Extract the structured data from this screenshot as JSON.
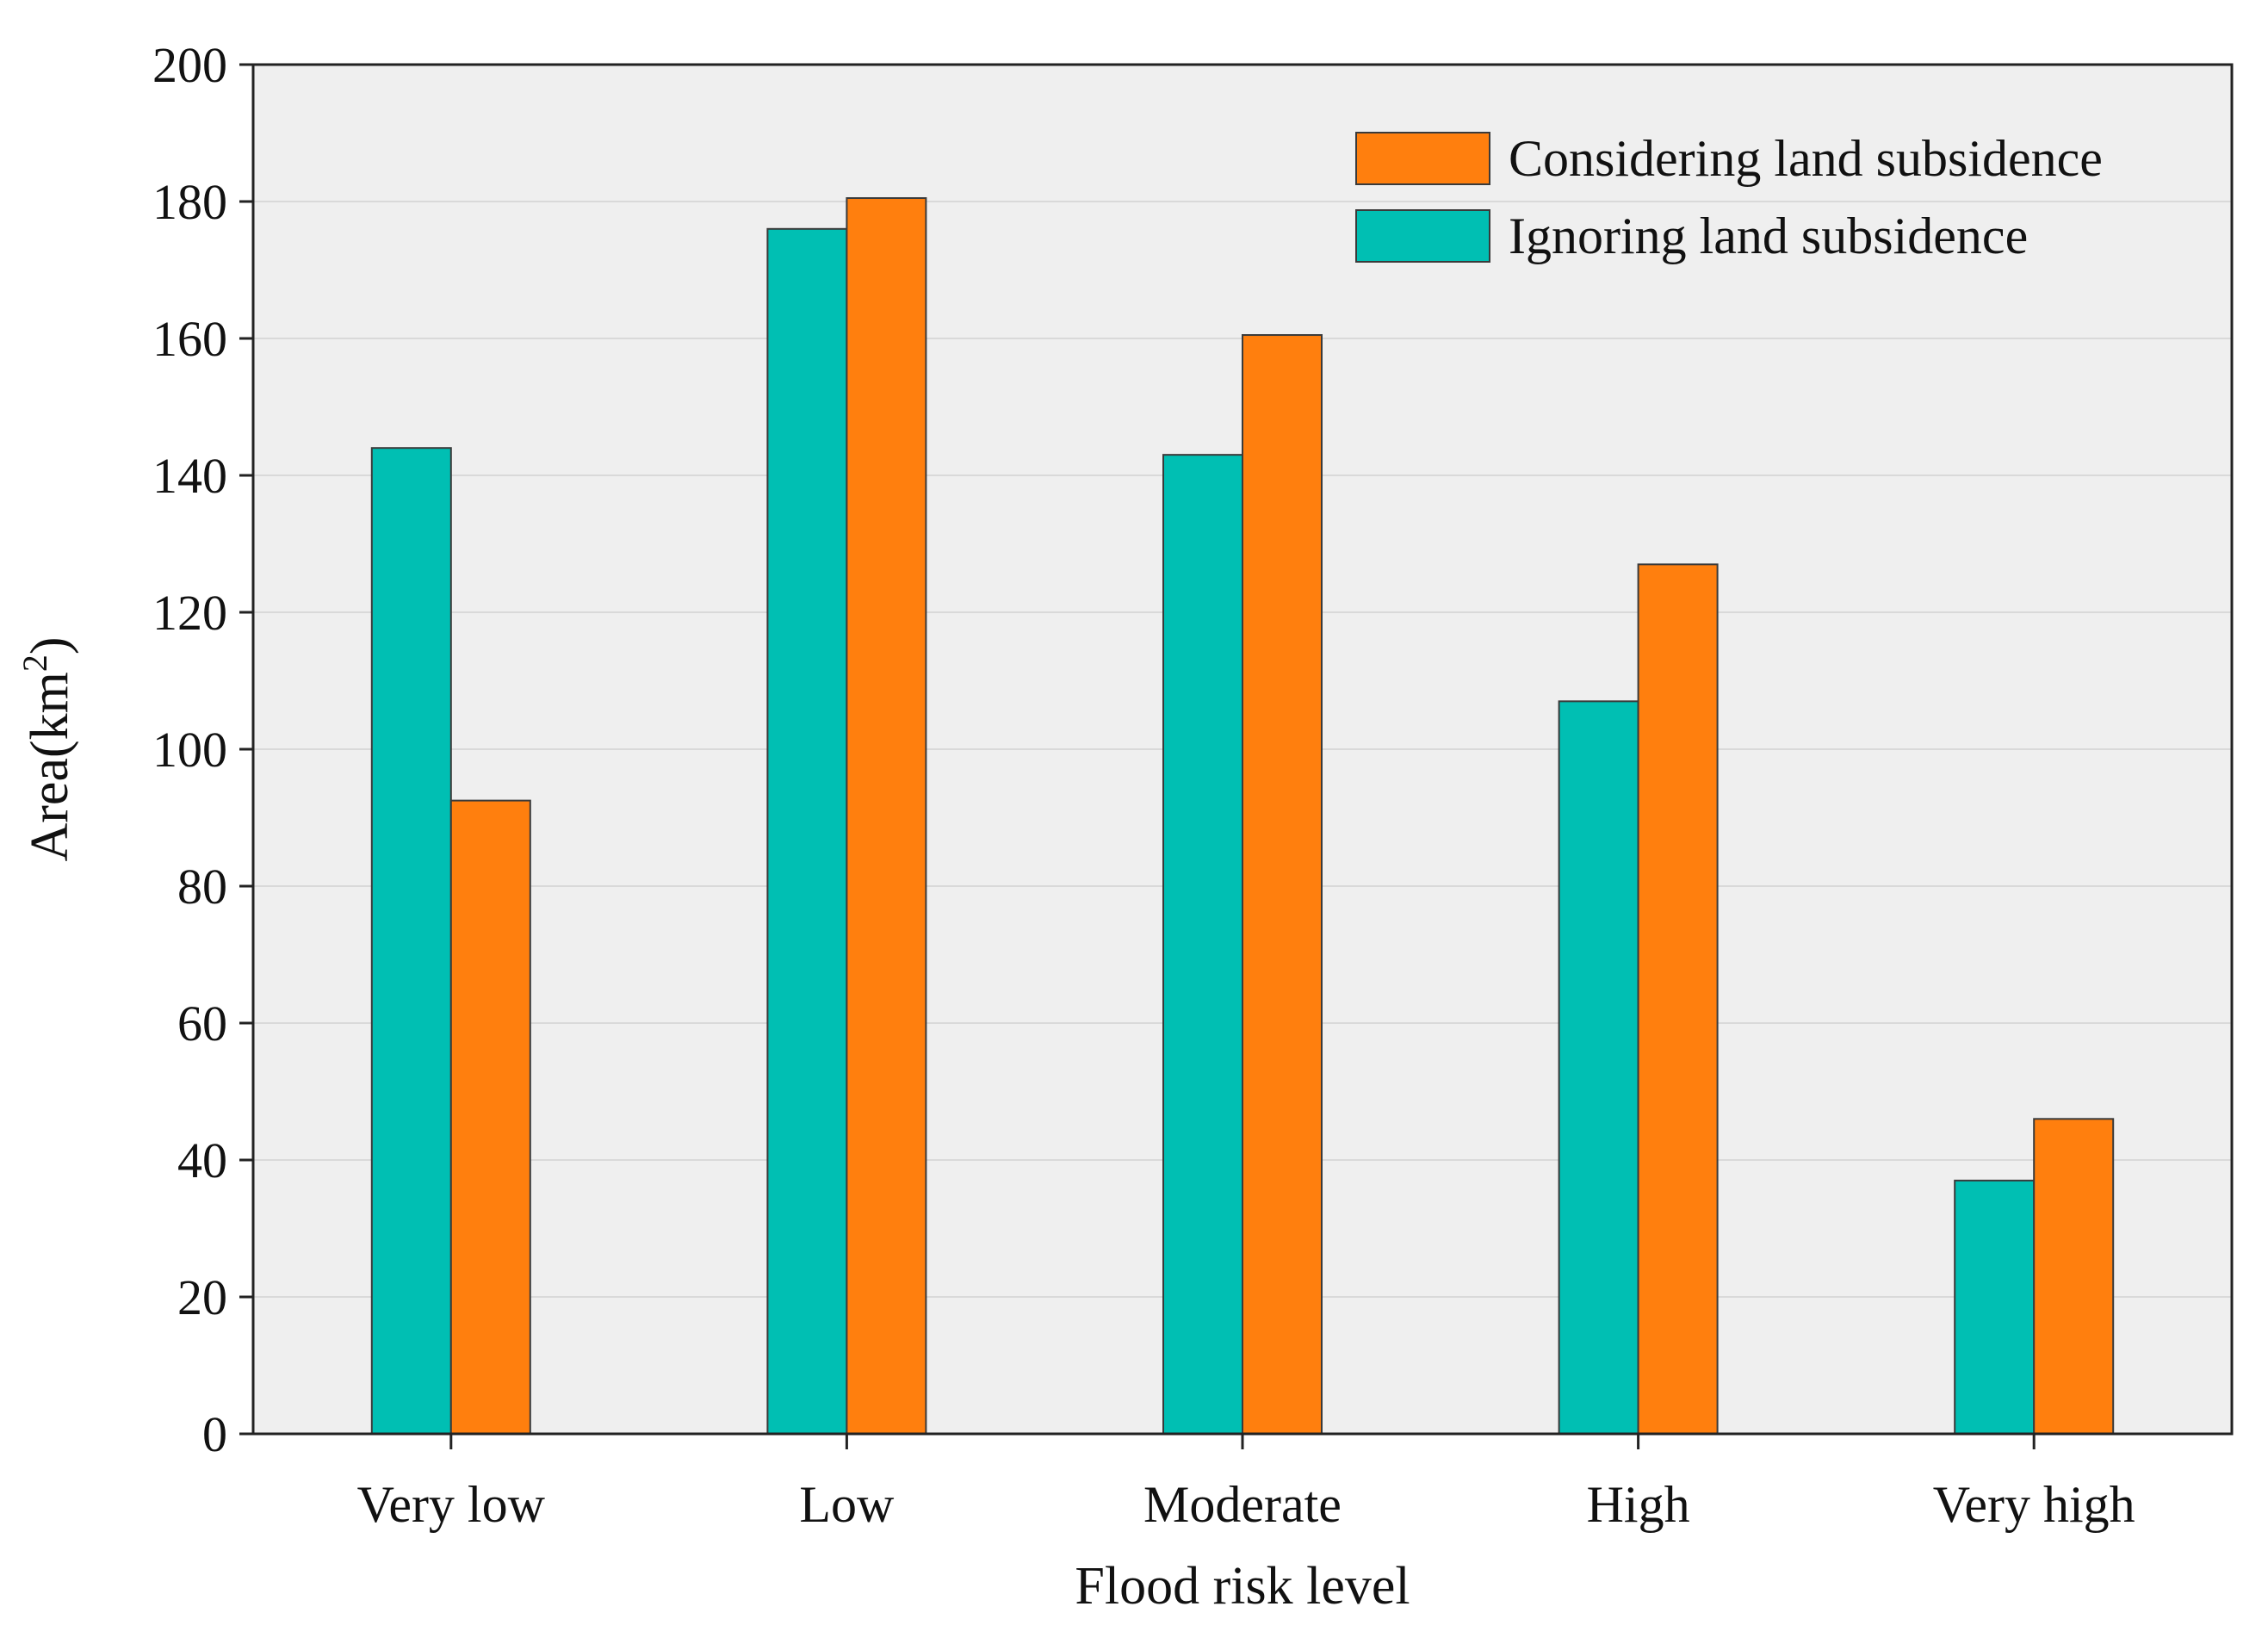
{
  "chart_data": {
    "type": "bar",
    "title": "",
    "xlabel": "Flood risk level",
    "ylabel": "Area(km²)",
    "ylabel_base": "Area(km",
    "ylabel_sup": "2",
    "ylabel_close": ")",
    "ylim": [
      0,
      200
    ],
    "yticks": [
      "0",
      "20",
      "40",
      "60",
      "80",
      "100",
      "120",
      "140",
      "160",
      "180",
      "200"
    ],
    "grid": true,
    "legend_position": "top-right",
    "categories": [
      "Very low",
      "Low",
      "Moderate",
      "High",
      "Very high"
    ],
    "series": [
      {
        "name": "Ignoring land subsidence",
        "color": "#00BFB3",
        "values": [
          144,
          176,
          143,
          107,
          37
        ]
      },
      {
        "name": "Considering land subsidence",
        "color": "#FF7F0E",
        "values": [
          92.5,
          180.5,
          160.5,
          127,
          46
        ]
      }
    ],
    "legend_order": [
      1,
      0
    ],
    "colors": {
      "plot_background": "#EFEFEF",
      "grid": "#D9D9D9",
      "axis": "#222222",
      "bar_edge": "#3A3A3A"
    }
  }
}
